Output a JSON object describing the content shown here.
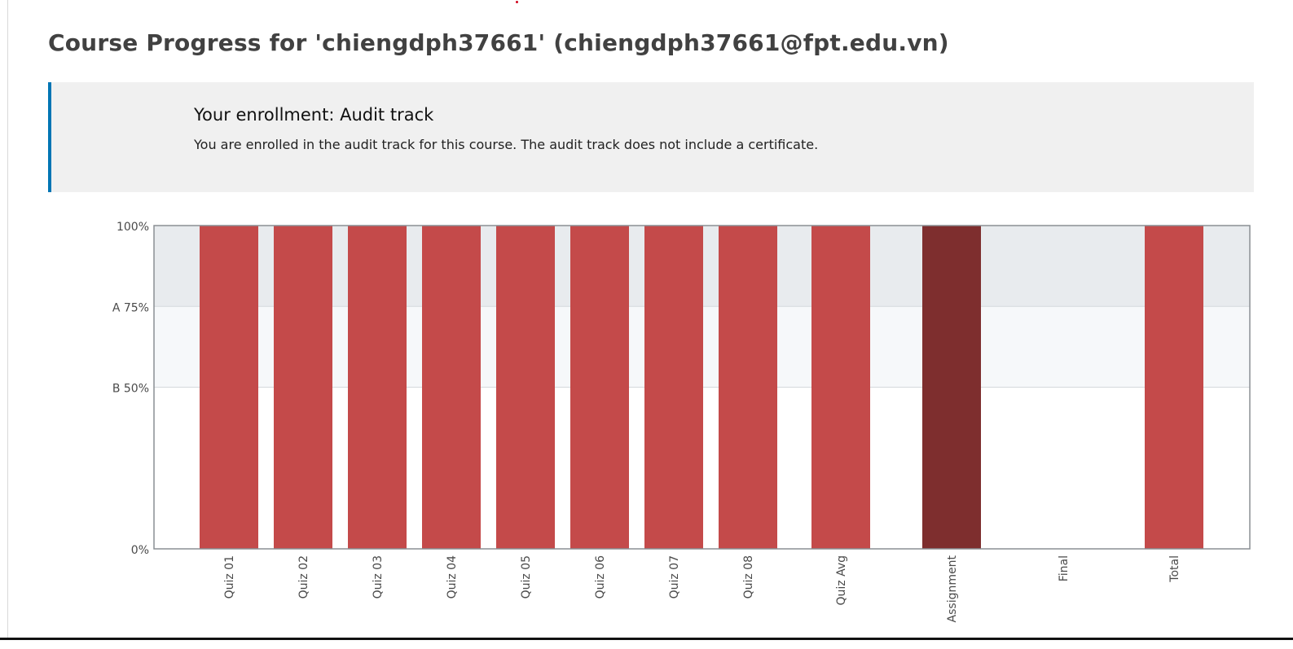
{
  "page": {
    "title": "Course Progress for 'chiengdph37661' (chiengdph37661@fpt.edu.vn)"
  },
  "enrollment": {
    "heading": "Your enrollment: Audit track",
    "message": "You are enrolled in the audit track for this course. The audit track does not include a certificate."
  },
  "colors": {
    "accent_border": "#0075b4",
    "bar": "#c44a4a",
    "bar_total_section": "#7e2e2e",
    "grade_band_a": "#e8ebee",
    "grade_band_b": "#f6f8fa"
  },
  "chart_data": {
    "type": "bar",
    "categories": [
      "Quiz 01",
      "Quiz 02",
      "Quiz 03",
      "Quiz 04",
      "Quiz 05",
      "Quiz 06",
      "Quiz 07",
      "Quiz 08",
      "Quiz Avg",
      "Assignment",
      "Final",
      "Total"
    ],
    "values": [
      100,
      100,
      100,
      100,
      100,
      100,
      100,
      100,
      100,
      100,
      0,
      100
    ],
    "ylim": [
      0,
      100
    ],
    "yticks": [
      {
        "value": 100,
        "label": "100%"
      },
      {
        "value": 75,
        "label": "A 75%"
      },
      {
        "value": 50,
        "label": "B 50%"
      },
      {
        "value": 0,
        "label": "0%"
      }
    ],
    "grade_bands": [
      {
        "grade": "A",
        "from": 75,
        "to": 100
      },
      {
        "grade": "B",
        "from": 50,
        "to": 75
      }
    ],
    "title": "",
    "xlabel": "",
    "ylabel": "",
    "grid": true
  }
}
